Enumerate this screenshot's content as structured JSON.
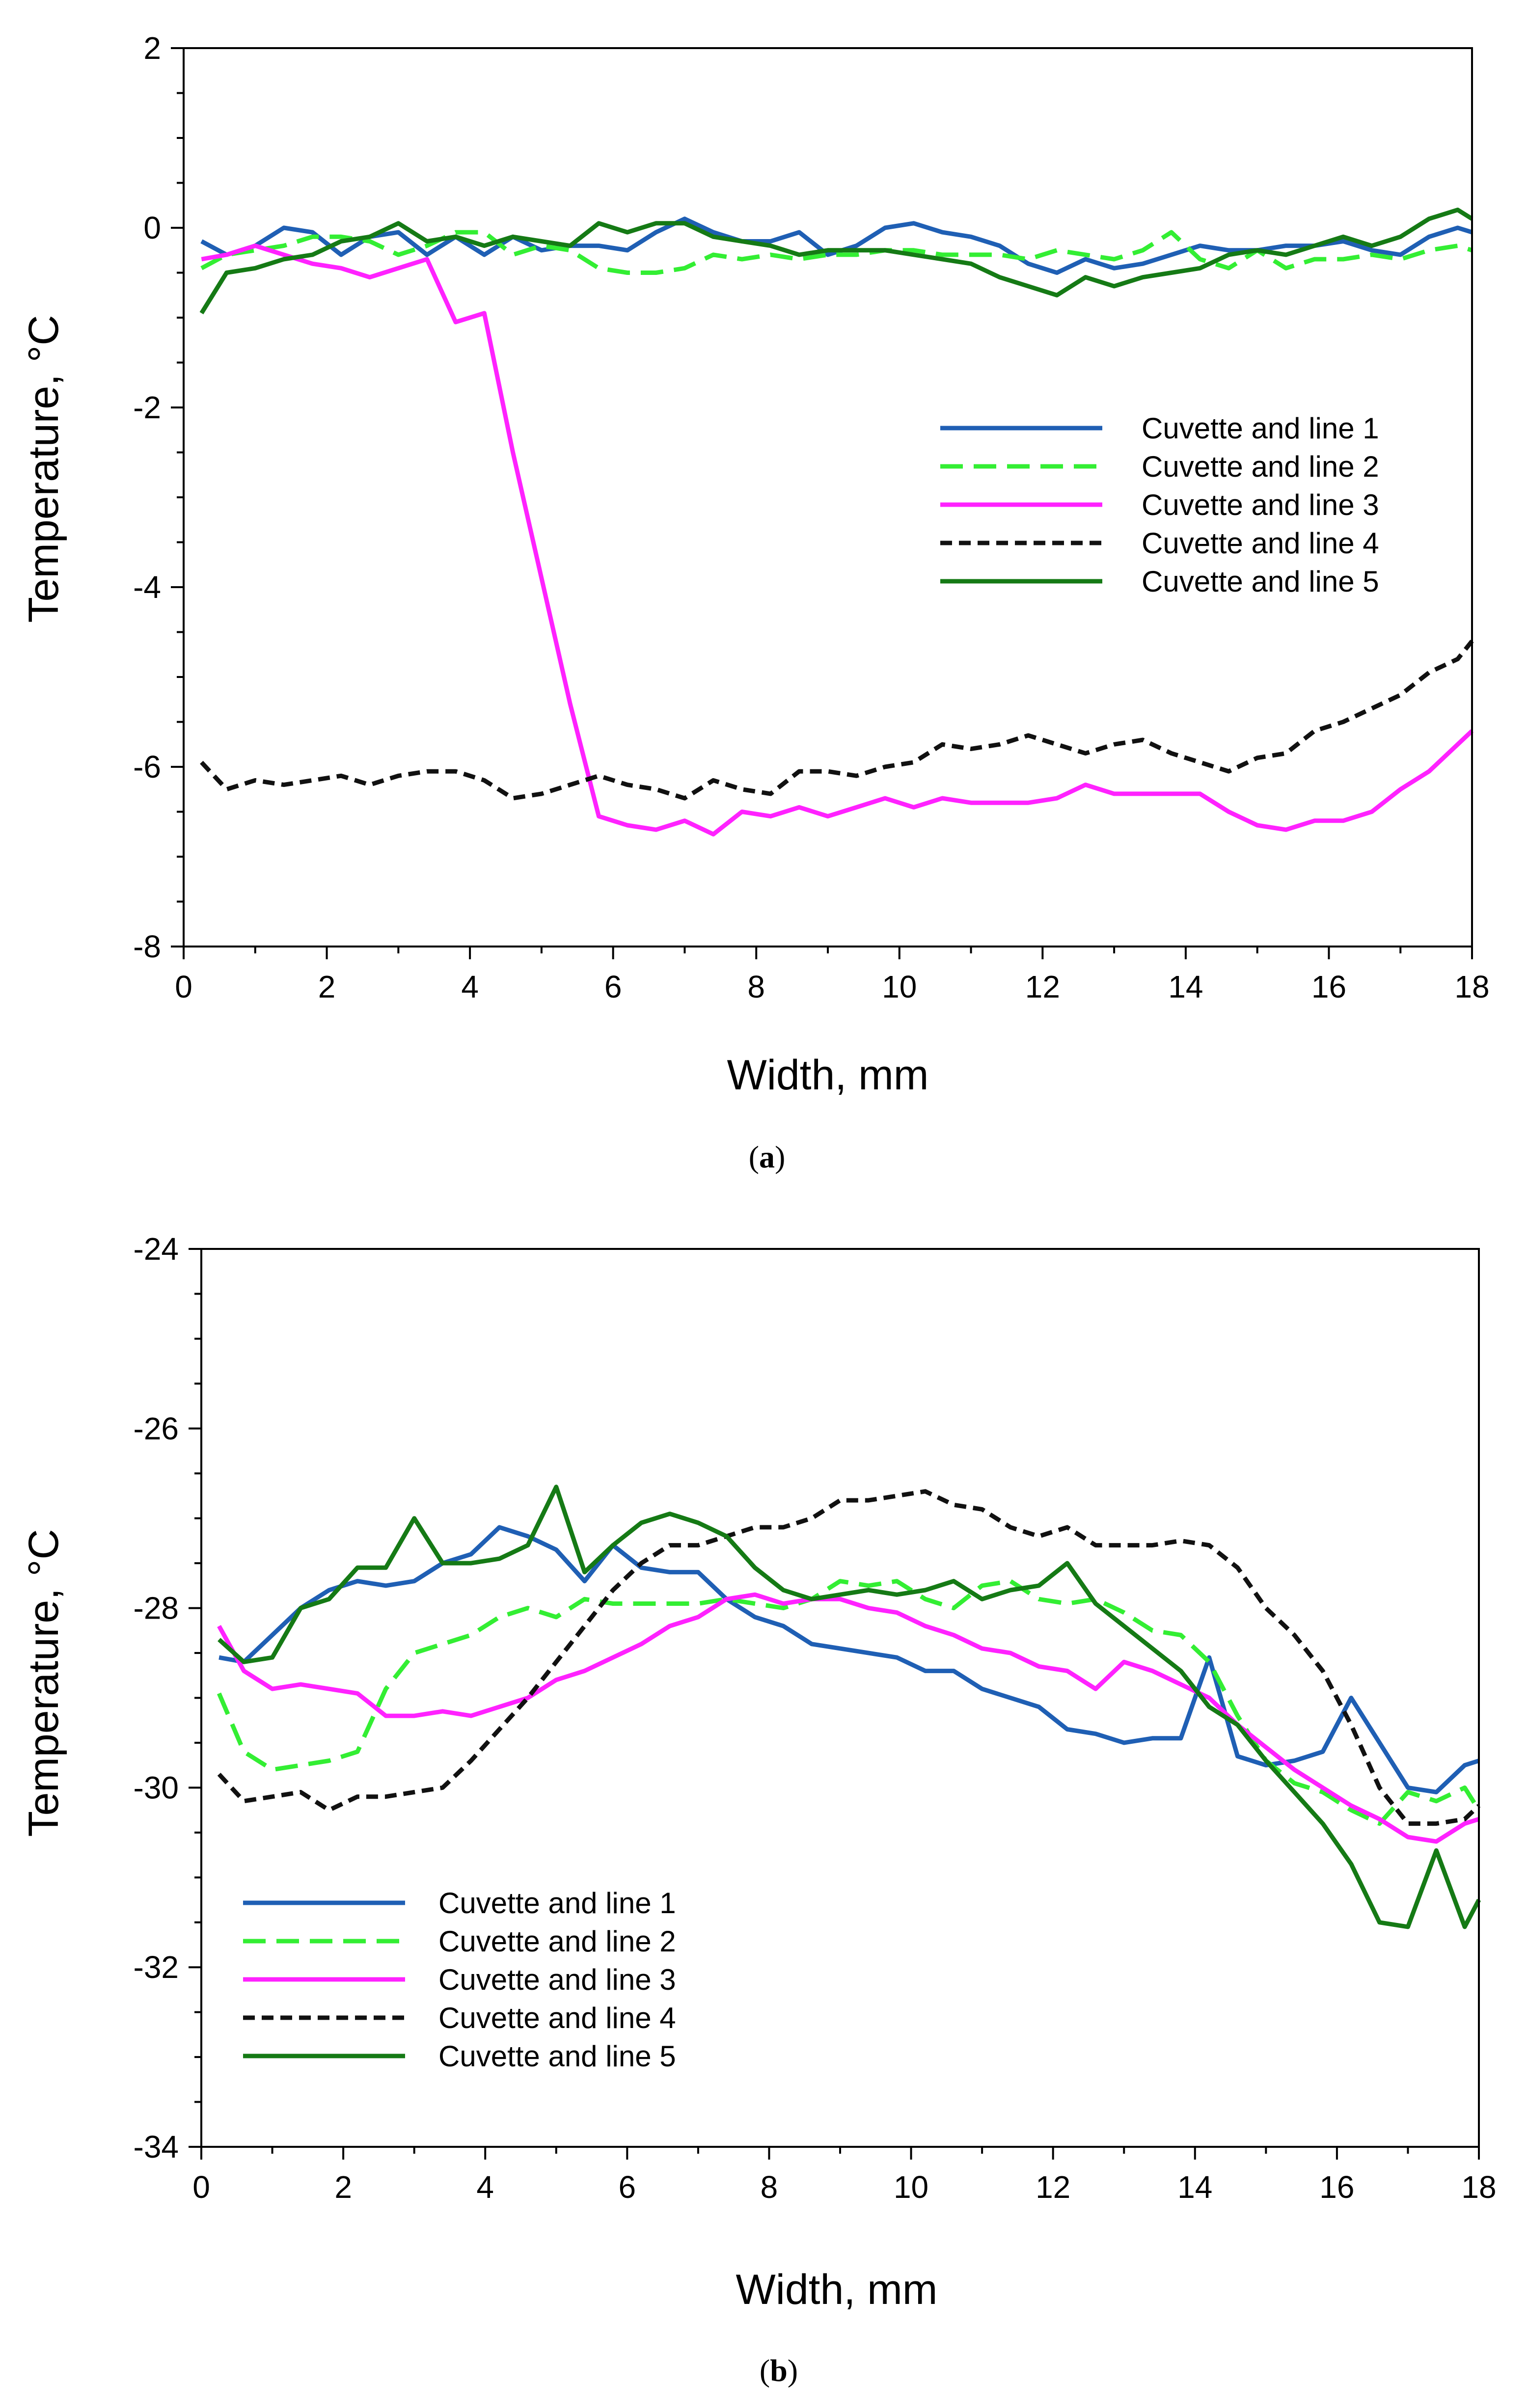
{
  "chart_data": [
    {
      "id": "a",
      "type": "line",
      "caption_letter": "a",
      "xlabel": "Width, mm",
      "ylabel": "Temperature, °C",
      "xlim": [
        0,
        18
      ],
      "ylim": [
        -8,
        2
      ],
      "xticks": [
        0,
        2,
        4,
        6,
        8,
        10,
        12,
        14,
        16,
        18
      ],
      "yticks": [
        -8,
        -6,
        -4,
        -2,
        0,
        2
      ],
      "xtick_labels": [
        "0",
        "2",
        "4",
        "6",
        "8",
        "10",
        "12",
        "14",
        "16",
        "18"
      ],
      "ytick_labels": [
        "-8",
        "-6",
        "-4",
        "-2",
        "0",
        "2"
      ],
      "legend_position": "right-center",
      "x": [
        0.25,
        0.6,
        1.0,
        1.4,
        1.8,
        2.2,
        2.6,
        3.0,
        3.4,
        3.8,
        4.2,
        4.6,
        5.0,
        5.4,
        5.8,
        6.2,
        6.6,
        7.0,
        7.4,
        7.8,
        8.2,
        8.6,
        9.0,
        9.4,
        9.8,
        10.2,
        10.6,
        11.0,
        11.4,
        11.8,
        12.2,
        12.6,
        13.0,
        13.4,
        13.8,
        14.2,
        14.6,
        15.0,
        15.4,
        15.8,
        16.2,
        16.6,
        17.0,
        17.4,
        17.8,
        18.0
      ],
      "series": [
        {
          "name": "Cuvette and line 1",
          "color": "#1f5fb4",
          "dash": "solid",
          "values": [
            -0.15,
            -0.3,
            -0.2,
            0.0,
            -0.05,
            -0.3,
            -0.1,
            -0.05,
            -0.3,
            -0.1,
            -0.3,
            -0.1,
            -0.25,
            -0.2,
            -0.2,
            -0.25,
            -0.05,
            0.1,
            -0.05,
            -0.15,
            -0.15,
            -0.05,
            -0.3,
            -0.2,
            0.0,
            0.05,
            -0.05,
            -0.1,
            -0.2,
            -0.4,
            -0.5,
            -0.35,
            -0.45,
            -0.4,
            -0.3,
            -0.2,
            -0.25,
            -0.25,
            -0.2,
            -0.2,
            -0.15,
            -0.25,
            -0.3,
            -0.1,
            0.0,
            -0.05
          ]
        },
        {
          "name": "Cuvette and line 2",
          "color": "#33ee33",
          "dash": "long",
          "values": [
            -0.45,
            -0.3,
            -0.25,
            -0.2,
            -0.1,
            -0.1,
            -0.15,
            -0.3,
            -0.2,
            -0.05,
            -0.05,
            -0.3,
            -0.2,
            -0.25,
            -0.45,
            -0.5,
            -0.5,
            -0.45,
            -0.3,
            -0.35,
            -0.3,
            -0.35,
            -0.3,
            -0.3,
            -0.25,
            -0.25,
            -0.3,
            -0.3,
            -0.3,
            -0.35,
            -0.25,
            -0.3,
            -0.35,
            -0.25,
            -0.05,
            -0.35,
            -0.45,
            -0.25,
            -0.45,
            -0.35,
            -0.35,
            -0.3,
            -0.35,
            -0.25,
            -0.2,
            -0.25
          ]
        },
        {
          "name": "Cuvette and line 3",
          "color": "#ff22ff",
          "dash": "solid",
          "values": [
            -0.35,
            -0.3,
            -0.2,
            -0.3,
            -0.4,
            -0.45,
            -0.55,
            -0.45,
            -0.35,
            -1.05,
            -0.95,
            -2.5,
            -3.9,
            -5.3,
            -6.55,
            -6.65,
            -6.7,
            -6.6,
            -6.75,
            -6.5,
            -6.55,
            -6.45,
            -6.55,
            -6.45,
            -6.35,
            -6.45,
            -6.35,
            -6.4,
            -6.4,
            -6.4,
            -6.35,
            -6.2,
            -6.3,
            -6.3,
            -6.3,
            -6.3,
            -6.5,
            -6.65,
            -6.7,
            -6.6,
            -6.6,
            -6.5,
            -6.25,
            -6.05,
            -5.75,
            -5.6
          ]
        },
        {
          "name": "Cuvette and line 4",
          "color": "#111111",
          "dash": "short",
          "values": [
            -5.95,
            -6.25,
            -6.15,
            -6.2,
            -6.15,
            -6.1,
            -6.2,
            -6.1,
            -6.05,
            -6.05,
            -6.15,
            -6.35,
            -6.3,
            -6.2,
            -6.1,
            -6.2,
            -6.25,
            -6.35,
            -6.15,
            -6.25,
            -6.3,
            -6.05,
            -6.05,
            -6.1,
            -6.0,
            -5.95,
            -5.75,
            -5.8,
            -5.75,
            -5.65,
            -5.75,
            -5.85,
            -5.75,
            -5.7,
            -5.85,
            -5.95,
            -6.05,
            -5.9,
            -5.85,
            -5.6,
            -5.5,
            -5.35,
            -5.2,
            -4.95,
            -4.8,
            -4.6
          ]
        },
        {
          "name": "Cuvette and line 5",
          "color": "#157a15",
          "dash": "solid",
          "values": [
            -0.95,
            -0.5,
            -0.45,
            -0.35,
            -0.3,
            -0.15,
            -0.1,
            0.05,
            -0.15,
            -0.1,
            -0.2,
            -0.1,
            -0.15,
            -0.2,
            0.05,
            -0.05,
            0.05,
            0.05,
            -0.1,
            -0.15,
            -0.2,
            -0.3,
            -0.25,
            -0.25,
            -0.25,
            -0.3,
            -0.35,
            -0.4,
            -0.55,
            -0.65,
            -0.75,
            -0.55,
            -0.65,
            -0.55,
            -0.5,
            -0.45,
            -0.3,
            -0.25,
            -0.3,
            -0.2,
            -0.1,
            -0.2,
            -0.1,
            0.1,
            0.2,
            0.1
          ]
        }
      ]
    },
    {
      "id": "b",
      "type": "line",
      "caption_letter": "b",
      "xlabel": "Width, mm",
      "ylabel": "Temperature, °C",
      "xlim": [
        0,
        18
      ],
      "ylim": [
        -34,
        -24
      ],
      "xticks": [
        0,
        2,
        4,
        6,
        8,
        10,
        12,
        14,
        16,
        18
      ],
      "yticks": [
        -34,
        -32,
        -30,
        -28,
        -26,
        -24
      ],
      "xtick_labels": [
        "0",
        "2",
        "4",
        "6",
        "8",
        "10",
        "12",
        "14",
        "16",
        "18"
      ],
      "ytick_labels": [
        "-34",
        "-32",
        "-30",
        "-28",
        "-26",
        "-24"
      ],
      "legend_position": "bottom-left",
      "x": [
        0.25,
        0.6,
        1.0,
        1.4,
        1.8,
        2.2,
        2.6,
        3.0,
        3.4,
        3.8,
        4.2,
        4.6,
        5.0,
        5.4,
        5.8,
        6.2,
        6.6,
        7.0,
        7.4,
        7.8,
        8.2,
        8.6,
        9.0,
        9.4,
        9.8,
        10.2,
        10.6,
        11.0,
        11.4,
        11.8,
        12.2,
        12.6,
        13.0,
        13.4,
        13.8,
        14.2,
        14.6,
        15.0,
        15.4,
        15.8,
        16.2,
        16.6,
        17.0,
        17.4,
        17.8,
        18.0
      ],
      "series": [
        {
          "name": "Cuvette and line 1",
          "color": "#1f5fb4",
          "dash": "solid",
          "values": [
            -28.55,
            -28.6,
            -28.3,
            -28.0,
            -27.8,
            -27.7,
            -27.75,
            -27.7,
            -27.5,
            -27.4,
            -27.1,
            -27.2,
            -27.35,
            -27.7,
            -27.3,
            -27.55,
            -27.6,
            -27.6,
            -27.9,
            -28.1,
            -28.2,
            -28.4,
            -28.45,
            -28.5,
            -28.55,
            -28.7,
            -28.7,
            -28.9,
            -29.0,
            -29.1,
            -29.35,
            -29.4,
            -29.5,
            -29.45,
            -29.45,
            -28.55,
            -29.65,
            -29.75,
            -29.7,
            -29.6,
            -29.0,
            -29.5,
            -30.0,
            -30.05,
            -29.75,
            -29.7
          ]
        },
        {
          "name": "Cuvette and line 2",
          "color": "#33ee33",
          "dash": "long",
          "values": [
            -28.95,
            -29.6,
            -29.8,
            -29.75,
            -29.7,
            -29.6,
            -28.9,
            -28.5,
            -28.4,
            -28.3,
            -28.1,
            -28.0,
            -28.1,
            -27.9,
            -27.95,
            -27.95,
            -27.95,
            -27.95,
            -27.9,
            -27.95,
            -28.0,
            -27.9,
            -27.7,
            -27.75,
            -27.7,
            -27.9,
            -28.0,
            -27.75,
            -27.7,
            -27.9,
            -27.95,
            -27.9,
            -28.05,
            -28.25,
            -28.3,
            -28.6,
            -29.2,
            -29.7,
            -29.95,
            -30.05,
            -30.25,
            -30.4,
            -30.05,
            -30.15,
            -30.0,
            -30.25
          ]
        },
        {
          "name": "Cuvette and line 3",
          "color": "#ff22ff",
          "dash": "solid",
          "values": [
            -28.2,
            -28.7,
            -28.9,
            -28.85,
            -28.9,
            -28.95,
            -29.2,
            -29.2,
            -29.15,
            -29.2,
            -29.1,
            -29.0,
            -28.8,
            -28.7,
            -28.55,
            -28.4,
            -28.2,
            -28.1,
            -27.9,
            -27.85,
            -27.95,
            -27.9,
            -27.9,
            -28.0,
            -28.05,
            -28.2,
            -28.3,
            -28.45,
            -28.5,
            -28.65,
            -28.7,
            -28.9,
            -28.6,
            -28.7,
            -28.85,
            -29.0,
            -29.3,
            -29.55,
            -29.8,
            -30.0,
            -30.2,
            -30.35,
            -30.55,
            -30.6,
            -30.4,
            -30.35
          ]
        },
        {
          "name": "Cuvette and line 4",
          "color": "#111111",
          "dash": "short",
          "values": [
            -29.85,
            -30.15,
            -30.1,
            -30.05,
            -30.25,
            -30.1,
            -30.1,
            -30.05,
            -30.0,
            -29.7,
            -29.35,
            -29.0,
            -28.6,
            -28.2,
            -27.8,
            -27.5,
            -27.3,
            -27.3,
            -27.2,
            -27.1,
            -27.1,
            -27.0,
            -26.8,
            -26.8,
            -26.75,
            -26.7,
            -26.85,
            -26.9,
            -27.1,
            -27.2,
            -27.1,
            -27.3,
            -27.3,
            -27.3,
            -27.25,
            -27.3,
            -27.55,
            -28.0,
            -28.3,
            -28.7,
            -29.3,
            -30.0,
            -30.4,
            -30.4,
            -30.35,
            -30.2
          ]
        },
        {
          "name": "Cuvette and line 5",
          "color": "#157a15",
          "dash": "solid",
          "values": [
            -28.35,
            -28.6,
            -28.55,
            -28.0,
            -27.9,
            -27.55,
            -27.55,
            -27.0,
            -27.5,
            -27.5,
            -27.45,
            -27.3,
            -26.65,
            -27.6,
            -27.3,
            -27.05,
            -26.95,
            -27.05,
            -27.2,
            -27.55,
            -27.8,
            -27.9,
            -27.85,
            -27.8,
            -27.85,
            -27.8,
            -27.7,
            -27.9,
            -27.8,
            -27.75,
            -27.5,
            -27.95,
            -28.2,
            -28.45,
            -28.7,
            -29.1,
            -29.3,
            -29.7,
            -30.05,
            -30.4,
            -30.85,
            -31.5,
            -31.55,
            -30.7,
            -31.55,
            -31.25
          ]
        }
      ]
    }
  ]
}
